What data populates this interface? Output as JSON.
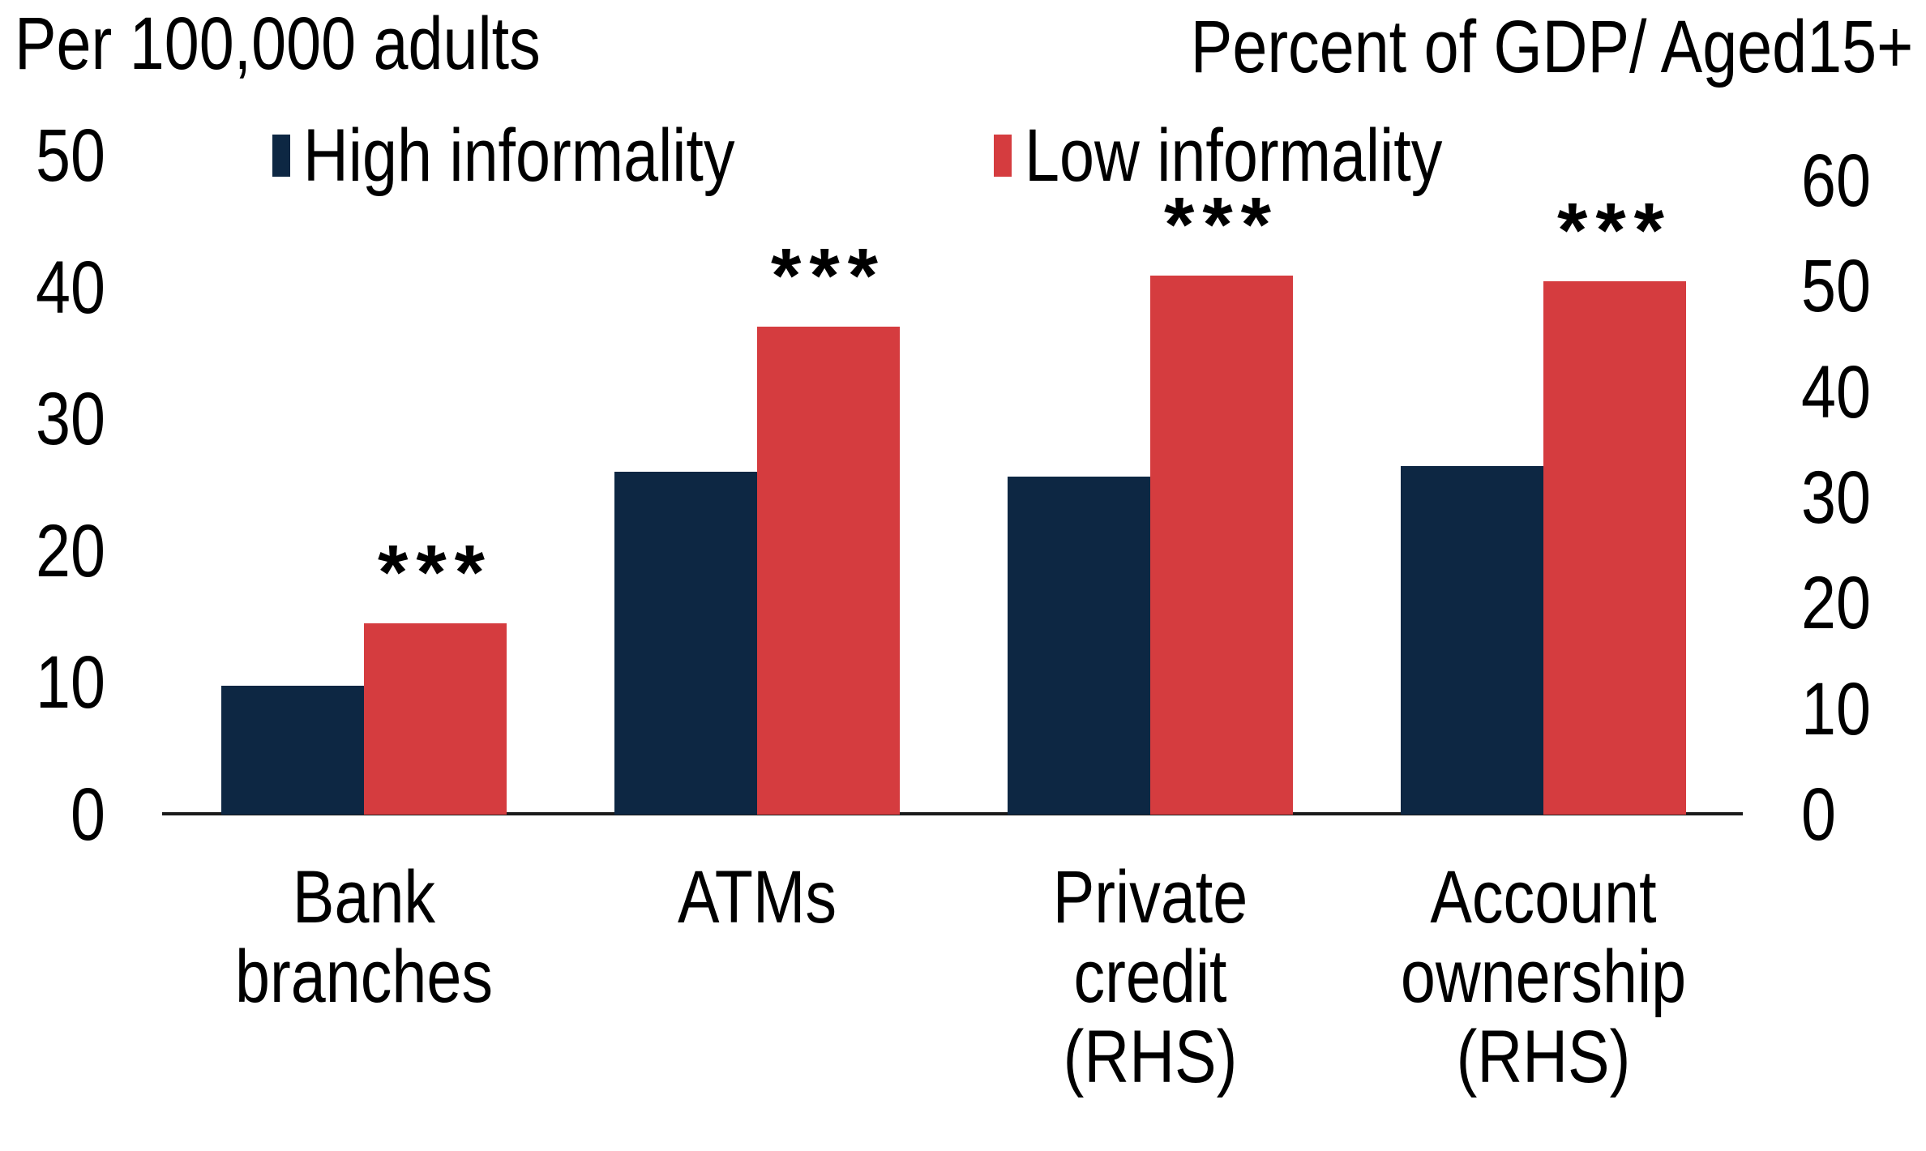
{
  "chart_data": {
    "type": "bar",
    "left_axis_title": "Per 100,000 adults",
    "right_axis_title": "Percent of GDP/ Aged15+",
    "categories": [
      "Bank branches",
      "ATMs",
      "Private credit (RHS)",
      "Account ownership (RHS)"
    ],
    "category_lines": [
      [
        "Bank",
        "branches"
      ],
      [
        "ATMs"
      ],
      [
        "Private",
        "credit",
        "(RHS)"
      ],
      [
        "Account",
        "ownership",
        "(RHS)"
      ]
    ],
    "category_axis": [
      "left",
      "left",
      "right",
      "right"
    ],
    "series": [
      {
        "name": "High informality",
        "color": "#0d2743",
        "values": [
          9.8,
          26,
          32,
          33
        ]
      },
      {
        "name": "Low informality",
        "color": "#d53c3f",
        "values": [
          14.5,
          37,
          51,
          50.5
        ],
        "significance": [
          "***",
          "***",
          "***",
          "***"
        ]
      }
    ],
    "legend": [
      {
        "label": "High informality",
        "color": "#0d2743"
      },
      {
        "label": "Low informality",
        "color": "#d53c3f"
      }
    ],
    "axes": {
      "left": {
        "range": [
          0,
          50
        ],
        "ticks": [
          0,
          10,
          20,
          30,
          40,
          50
        ]
      },
      "right": {
        "range": [
          0,
          60
        ],
        "ticks": [
          0,
          10,
          20,
          30,
          40,
          50,
          60
        ]
      }
    },
    "grid": false,
    "legend_position": "top"
  }
}
